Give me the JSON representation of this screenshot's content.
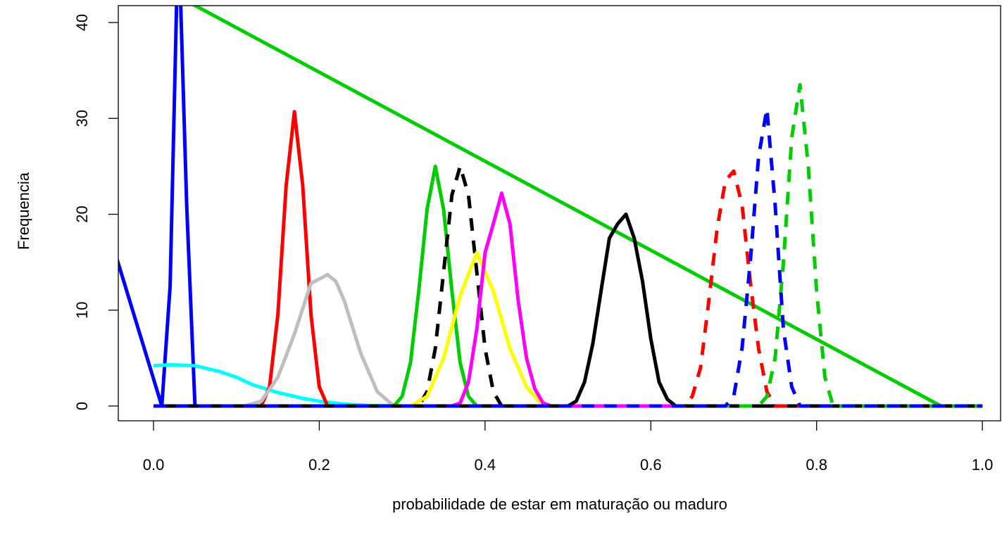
{
  "chart_data": {
    "type": "line",
    "xlabel": "probabilidade de estar em maturação ou maduro",
    "ylabel": "Frequencia",
    "xlim": [
      -0.0425,
      1.022
    ],
    "ylim": [
      -1.54,
      41.76
    ],
    "xticks": [
      {
        "value": 0,
        "label": "0.0"
      },
      0.2,
      0.4,
      0.6,
      0.8,
      {
        "value": 1,
        "label": "1.0"
      }
    ],
    "yticks": [
      0,
      10,
      20,
      30,
      40
    ],
    "series": [
      {
        "color": "#0000ff",
        "dash": false,
        "x": [
          -0.05,
          0.01,
          0.02,
          0.03,
          0.04,
          0.05,
          1.0
        ],
        "values": [
          17.0,
          0,
          12.5,
          50,
          21,
          0,
          0
        ]
      },
      {
        "color": "#00cd00",
        "dash": false,
        "x": [
          0,
          0.95,
          1.0
        ],
        "values": [
          44.1,
          0,
          0
        ]
      },
      {
        "color": "#00ffff",
        "dash": false,
        "x": [
          0,
          0.02,
          0.05,
          0.08,
          0.1,
          0.12,
          0.15,
          0.18,
          0.2,
          0.23,
          0.26,
          0.3,
          1.0
        ],
        "values": [
          4.2,
          4.3,
          4.2,
          3.6,
          3.0,
          2.2,
          1.4,
          0.8,
          0.5,
          0.2,
          0.05,
          0,
          0
        ]
      },
      {
        "color": "#ff0000",
        "dash": false,
        "x": [
          0,
          0.13,
          0.14,
          0.15,
          0.16,
          0.17,
          0.18,
          0.19,
          0.2,
          0.21,
          1.0
        ],
        "values": [
          0,
          0,
          2,
          9.5,
          23,
          30.7,
          23,
          9.5,
          2,
          0,
          0
        ]
      },
      {
        "color": "#bebebe",
        "dash": false,
        "x": [
          0,
          0.11,
          0.13,
          0.15,
          0.17,
          0.19,
          0.21,
          0.22,
          0.23,
          0.25,
          0.27,
          0.29,
          1.0
        ],
        "values": [
          0,
          0,
          0.5,
          3,
          7.5,
          12.8,
          13.7,
          13,
          11,
          5.5,
          1.5,
          0,
          0
        ]
      },
      {
        "color": "#00cd00",
        "dash": false,
        "x": [
          0,
          0.29,
          0.3,
          0.31,
          0.32,
          0.33,
          0.34,
          0.35,
          0.36,
          0.37,
          0.38,
          0.39,
          1.0
        ],
        "values": [
          0,
          0,
          1,
          4.5,
          12,
          20.5,
          25,
          20.5,
          12,
          4.5,
          1,
          0,
          0
        ]
      },
      {
        "color": "#000000",
        "dash": true,
        "x": [
          0,
          0.32,
          0.33,
          0.34,
          0.35,
          0.36,
          0.37,
          0.38,
          0.39,
          0.4,
          0.41,
          0.42,
          1.0
        ],
        "values": [
          0,
          0,
          1.5,
          6,
          14,
          22,
          25,
          22,
          14,
          6,
          1.5,
          0,
          0
        ]
      },
      {
        "color": "#ffff00",
        "dash": false,
        "x": [
          0,
          0.31,
          0.33,
          0.35,
          0.37,
          0.39,
          0.41,
          0.43,
          0.45,
          0.47,
          1.0
        ],
        "values": [
          0,
          0,
          1,
          5,
          11.5,
          16,
          12,
          6,
          2,
          0,
          0
        ]
      },
      {
        "color": "#ff00ff",
        "dash": false,
        "x": [
          0,
          0.36,
          0.37,
          0.38,
          0.39,
          0.4,
          0.41,
          0.42,
          0.43,
          0.44,
          0.45,
          0.46,
          0.47,
          0.48,
          1.0
        ],
        "values": [
          0,
          0,
          0.3,
          2.5,
          8,
          16,
          19,
          22.2,
          19,
          11,
          5,
          1.8,
          0.3,
          0,
          0
        ]
      },
      {
        "color": "#000000",
        "dash": false,
        "x": [
          0,
          0.5,
          0.51,
          0.52,
          0.53,
          0.54,
          0.55,
          0.56,
          0.57,
          0.58,
          0.59,
          0.6,
          0.61,
          0.62,
          0.63,
          1.0
        ],
        "values": [
          0,
          0,
          0.5,
          2.5,
          6.5,
          12,
          17.5,
          19,
          20,
          17.5,
          13,
          7,
          2.5,
          0.7,
          0,
          0
        ]
      },
      {
        "color": "#ff0000",
        "dash": true,
        "x": [
          0,
          0.64,
          0.65,
          0.66,
          0.67,
          0.68,
          0.69,
          0.7,
          0.71,
          0.72,
          0.73,
          0.74,
          0.75,
          1.0
        ],
        "values": [
          0,
          0,
          1,
          4,
          11,
          18.5,
          23.5,
          24.5,
          21,
          13,
          6,
          1.5,
          0,
          0
        ]
      },
      {
        "color": "#00cd00",
        "dash": true,
        "x": [
          0,
          0.73,
          0.74,
          0.75,
          0.76,
          0.77,
          0.78,
          0.79,
          0.8,
          0.81,
          0.82,
          1.0
        ],
        "values": [
          0,
          0,
          1,
          5,
          15,
          28,
          33.5,
          25,
          12,
          3,
          0,
          0
        ]
      },
      {
        "color": "#0000ff",
        "dash": true,
        "x": [
          0,
          0.69,
          0.7,
          0.71,
          0.72,
          0.73,
          0.74,
          0.75,
          0.76,
          0.77,
          0.78,
          1.0
        ],
        "values": [
          0,
          0,
          1,
          6,
          15,
          26,
          31,
          21,
          8,
          2,
          0,
          0
        ]
      }
    ]
  }
}
